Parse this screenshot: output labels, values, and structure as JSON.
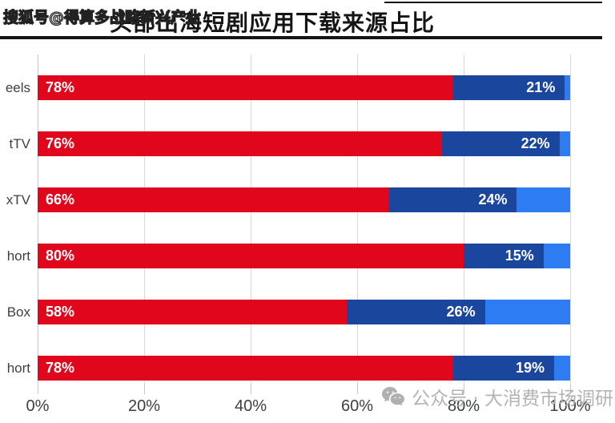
{
  "watermarks": {
    "top_left": "搜狐号@得算多战略新兴产业",
    "bottom_right": "公众号 · 大消费市场调研",
    "bottom_icon": "wechat-icon"
  },
  "header": {
    "title": "头部出海短剧应用下载来源占比"
  },
  "chart_data": {
    "type": "bar",
    "orientation": "horizontal",
    "stacked": true,
    "title": "头部出海短剧应用下载来源占比",
    "categories": [
      "eels",
      "tTV",
      "xTV",
      "hort",
      "Box",
      "hort"
    ],
    "categories_note": "labels clipped at left image edge; only fragments visible",
    "series": [
      {
        "name": "segment-red",
        "color": "#e0071c",
        "values": [
          78,
          76,
          66,
          80,
          58,
          78
        ],
        "show_label": true,
        "label_align": "left"
      },
      {
        "name": "segment-dark-blue",
        "color": "#1b469e",
        "values": [
          21,
          22,
          24,
          15,
          26,
          19
        ],
        "show_label": true,
        "label_align": "right"
      },
      {
        "name": "segment-light-blue",
        "color": "#2d7cf2",
        "values": [
          1,
          2,
          10,
          5,
          16,
          3
        ],
        "show_label": false,
        "label_align": "none"
      }
    ],
    "x_ticks": [
      "0%",
      "20%",
      "40%",
      "60%",
      "80%",
      "100%"
    ],
    "xlim": [
      0,
      100
    ],
    "grid": true,
    "legend": "none",
    "label_suffix": "%"
  },
  "colors": {
    "grid": "#d8d8d8",
    "axis": "#c6c6c6",
    "category_text": "#3c4043",
    "tick_text": "#3c4043",
    "title_text": "#151515",
    "watermark_text": "#b3b3b3"
  }
}
